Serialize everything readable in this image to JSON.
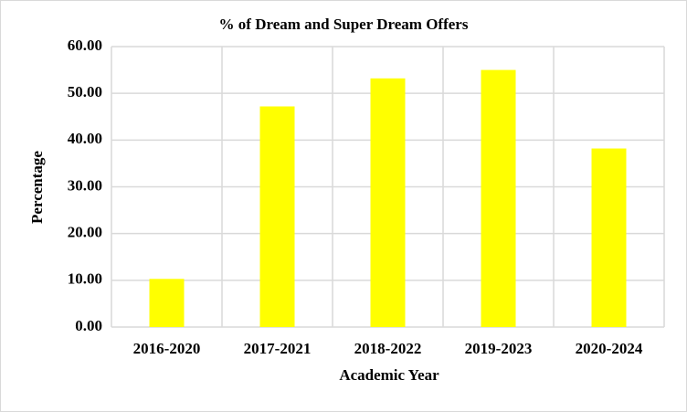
{
  "chart_data": {
    "type": "bar",
    "title": "% of Dream and Super Dream Offers",
    "x_label": "Academic Year",
    "y_label": "Percentage",
    "categories": [
      "2016-2020",
      "2017-2021",
      "2018-2022",
      "2019-2023",
      "2020-2024"
    ],
    "values": [
      10.3,
      47.2,
      53.2,
      55.0,
      38.2
    ],
    "color": "#ffff00",
    "ylim": [
      0,
      60
    ],
    "yticks": [
      {
        "value": 0,
        "label": "0.00"
      },
      {
        "value": 10,
        "label": "10.00"
      },
      {
        "value": 20,
        "label": "20.00"
      },
      {
        "value": 30,
        "label": "30.00"
      },
      {
        "value": 40,
        "label": "40.00"
      },
      {
        "value": 50,
        "label": "50.00"
      },
      {
        "value": 60,
        "label": "60.00"
      }
    ],
    "grid": true
  }
}
